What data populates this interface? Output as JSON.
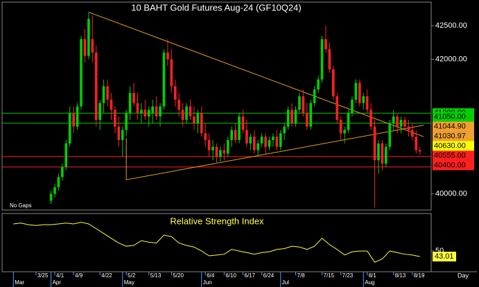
{
  "chart_data": {
    "type": "candlestick",
    "title": "10 BAHT Gold Futures Aug-24 (GF10Q24)",
    "note": "No Gaps",
    "x_unit": "Day",
    "up_color": "#00d000",
    "down_color": "#ff2020",
    "xlim": [
      -9,
      105
    ],
    "ylim": [
      39760,
      42850
    ],
    "yticks": [
      {
        "value": 42500,
        "label": "42500.00"
      },
      {
        "value": 42000,
        "label": "42000.00"
      },
      {
        "value": 40000,
        "label": "40000.00"
      }
    ],
    "xticks": [
      {
        "value": 0,
        "label": "3/25"
      },
      {
        "value": 5,
        "label": "4/1"
      },
      {
        "value": 10,
        "label": "4/9"
      },
      {
        "value": 17,
        "label": "4/22"
      },
      {
        "value": 24,
        "label": "5/2"
      },
      {
        "value": 30,
        "label": "5/13"
      },
      {
        "value": 36,
        "label": "5/20"
      },
      {
        "value": 45,
        "label": "6/4"
      },
      {
        "value": 50,
        "label": "6/10"
      },
      {
        "value": 55,
        "label": "6/17"
      },
      {
        "value": 60,
        "label": "6/24"
      },
      {
        "value": 69,
        "label": "7/8"
      },
      {
        "value": 76,
        "label": "7/15"
      },
      {
        "value": 81,
        "label": "7/23"
      },
      {
        "value": 88,
        "label": "8/1"
      },
      {
        "value": 95,
        "label": "8/13"
      },
      {
        "value": 100,
        "label": "8/19"
      }
    ],
    "month_ticks": [
      {
        "value": -6,
        "label": "Mar"
      },
      {
        "value": 4,
        "label": "Apr"
      },
      {
        "value": 23,
        "label": "May"
      },
      {
        "value": 44,
        "label": "Jun"
      },
      {
        "value": 65,
        "label": "Jul"
      },
      {
        "value": 87,
        "label": "Aug"
      }
    ],
    "x": [
      4,
      5,
      6,
      7,
      8,
      9,
      10,
      11,
      12,
      13,
      14,
      15,
      16,
      17,
      18,
      19,
      20,
      21,
      22,
      23,
      24,
      25,
      26,
      27,
      28,
      29,
      30,
      31,
      32,
      33,
      34,
      35,
      36,
      37,
      38,
      39,
      40,
      41,
      42,
      43,
      44,
      45,
      46,
      47,
      48,
      49,
      50,
      51,
      52,
      53,
      54,
      55,
      56,
      57,
      58,
      59,
      60,
      61,
      62,
      63,
      64,
      65,
      66,
      67,
      68,
      69,
      70,
      71,
      72,
      73,
      74,
      75,
      76,
      77,
      78,
      79,
      80,
      81,
      82,
      83,
      84,
      85,
      86,
      87,
      88,
      89,
      90,
      91,
      92,
      93,
      94,
      95,
      96,
      97,
      98,
      99,
      100,
      101,
      102
    ],
    "candles": [
      [
        39900,
        40050,
        39850,
        40000
      ],
      [
        40000,
        40150,
        39950,
        40100
      ],
      [
        40100,
        40300,
        40050,
        40250
      ],
      [
        40250,
        40450,
        40200,
        40400
      ],
      [
        40400,
        40800,
        40350,
        40750
      ],
      [
        40750,
        41300,
        40700,
        41200
      ],
      [
        41200,
        41300,
        40900,
        41000
      ],
      [
        41000,
        41350,
        40950,
        41300
      ],
      [
        41300,
        42350,
        41250,
        42300
      ],
      [
        42300,
        42450,
        41950,
        42050
      ],
      [
        42050,
        42700,
        42000,
        42600
      ],
      [
        42300,
        42650,
        41950,
        42100
      ],
      [
        42100,
        42200,
        41000,
        41100
      ],
      [
        41100,
        41400,
        40950,
        41350
      ],
      [
        41350,
        41700,
        41200,
        41600
      ],
      [
        41600,
        41700,
        41300,
        41400
      ],
      [
        41400,
        41500,
        41100,
        41250
      ],
      [
        41250,
        41300,
        40900,
        41000
      ],
      [
        41000,
        41150,
        40700,
        40800
      ],
      [
        40800,
        41000,
        40550,
        40950
      ],
      [
        40950,
        41250,
        40850,
        41200
      ],
      [
        41200,
        41600,
        41100,
        41500
      ],
      [
        41500,
        41650,
        41300,
        41350
      ],
      [
        41350,
        41500,
        41100,
        41200
      ],
      [
        41200,
        41350,
        41050,
        41250
      ],
      [
        41250,
        41400,
        41100,
        41150
      ],
      [
        41150,
        41300,
        41000,
        41250
      ],
      [
        41200,
        41400,
        41050,
        41300
      ],
      [
        41300,
        41450,
        41100,
        41150
      ],
      [
        41150,
        41350,
        41000,
        41300
      ],
      [
        41300,
        42150,
        41250,
        42100
      ],
      [
        42100,
        42300,
        41900,
        42000
      ],
      [
        42000,
        42150,
        41500,
        41600
      ],
      [
        41600,
        41700,
        41300,
        41400
      ],
      [
        41400,
        41500,
        41150,
        41250
      ],
      [
        41250,
        41350,
        41000,
        41100
      ],
      [
        41100,
        41350,
        41050,
        41300
      ],
      [
        41300,
        41400,
        41100,
        41150
      ],
      [
        41150,
        41300,
        40950,
        41050
      ],
      [
        41050,
        41250,
        40900,
        41200
      ],
      [
        41200,
        41300,
        40850,
        40900
      ],
      [
        40900,
        41050,
        40700,
        40800
      ],
      [
        40800,
        40900,
        40550,
        40650
      ],
      [
        40650,
        40800,
        40500,
        40700
      ],
      [
        40700,
        40750,
        40450,
        40550
      ],
      [
        40550,
        40700,
        40480,
        40650
      ],
      [
        40650,
        40750,
        40500,
        40600
      ],
      [
        40600,
        40850,
        40550,
        40800
      ],
      [
        40800,
        41000,
        40700,
        40950
      ],
      [
        40950,
        41050,
        40750,
        40800
      ],
      [
        40800,
        41200,
        40750,
        41150
      ],
      [
        41150,
        41250,
        40900,
        40950
      ],
      [
        40950,
        41100,
        40700,
        40750
      ],
      [
        40750,
        40900,
        40650,
        40850
      ],
      [
        40850,
        40950,
        40600,
        40650
      ],
      [
        40650,
        40800,
        40550,
        40750
      ],
      [
        40750,
        40900,
        40700,
        40850
      ],
      [
        40850,
        40900,
        40600,
        40700
      ],
      [
        40700,
        40850,
        40650,
        40800
      ],
      [
        40800,
        40900,
        40700,
        40850
      ],
      [
        40850,
        40950,
        40650,
        40700
      ],
      [
        40700,
        40950,
        40650,
        40900
      ],
      [
        40900,
        41050,
        40800,
        41000
      ],
      [
        41000,
        41300,
        40950,
        41250
      ],
      [
        41250,
        41350,
        41000,
        41050
      ],
      [
        41050,
        41300,
        41000,
        41250
      ],
      [
        41250,
        41500,
        41200,
        41450
      ],
      [
        41450,
        41550,
        41150,
        41200
      ],
      [
        41200,
        41350,
        40950,
        41000
      ],
      [
        41000,
        41400,
        40950,
        41350
      ],
      [
        41350,
        41600,
        41300,
        41550
      ],
      [
        41550,
        41750,
        41500,
        41700
      ],
      [
        41700,
        42350,
        41650,
        42300
      ],
      [
        42300,
        42500,
        42100,
        42150
      ],
      [
        42150,
        42250,
        41800,
        41850
      ],
      [
        41850,
        41900,
        41400,
        41450
      ],
      [
        41450,
        41500,
        41050,
        41100
      ],
      [
        41100,
        41150,
        40800,
        40900
      ],
      [
        40900,
        41000,
        40750,
        40950
      ],
      [
        40950,
        41250,
        40900,
        41200
      ],
      [
        41200,
        41450,
        41150,
        41400
      ],
      [
        41400,
        41700,
        41350,
        41650
      ],
      [
        41650,
        41700,
        41300,
        41350
      ],
      [
        41350,
        41500,
        41250,
        41450
      ],
      [
        41450,
        41550,
        41200,
        41250
      ],
      [
        41250,
        41350,
        40950,
        41000
      ],
      [
        41000,
        41100,
        39800,
        40500
      ],
      [
        40500,
        40800,
        40300,
        40750
      ],
      [
        40750,
        40800,
        40350,
        40450
      ],
      [
        40450,
        40750,
        40400,
        40700
      ],
      [
        40700,
        41100,
        40650,
        41050
      ],
      [
        41050,
        41250,
        40950,
        41150
      ],
      [
        41150,
        41200,
        40900,
        41000
      ],
      [
        41000,
        41150,
        40900,
        41100
      ],
      [
        41100,
        41150,
        40950,
        41000
      ],
      [
        41000,
        41100,
        40850,
        40950
      ],
      [
        40950,
        41050,
        40800,
        40850
      ],
      [
        40850,
        40950,
        40600,
        40650
      ],
      [
        40650,
        40700,
        40580,
        40630
      ]
    ],
    "levels": [
      {
        "value": 41200,
        "label": "41200.00",
        "color": "#00d000",
        "line": true
      },
      {
        "value": 41050,
        "label": "41050.00",
        "color": "#00d000",
        "line": true
      },
      {
        "value": 41044.9,
        "label": "41044.90",
        "color": "#f0a030",
        "line": false
      },
      {
        "value": 41030.97,
        "label": "41030.97",
        "color": "#f0a030",
        "line": false
      },
      {
        "value": 40630,
        "label": "40630.00",
        "color": "#ffff00",
        "line": false
      },
      {
        "value": 40555,
        "label": "40555.00",
        "color": "#ff2020",
        "line": true
      },
      {
        "value": 40400,
        "label": "40400.00",
        "color": "#ff2020",
        "line": true
      }
    ],
    "trendlines": [
      {
        "x": [
          14,
          103
        ],
        "y": [
          42700,
          40850
        ],
        "color": "#e8a020"
      },
      {
        "x": [
          24,
          24,
          103
        ],
        "y": [
          40830,
          40210,
          41020
        ],
        "color": "#e8a020"
      }
    ],
    "rsi": {
      "title": "Relative Strength Index",
      "color": "#ffff40",
      "ylim": [
        24,
        97
      ],
      "yticks": [
        50
      ],
      "x": [
        -6,
        -4,
        -2,
        0,
        2,
        4,
        6,
        8,
        10,
        12,
        14,
        16,
        18,
        20,
        22,
        24,
        26,
        28,
        30,
        32,
        34,
        36,
        38,
        40,
        42,
        44,
        46,
        48,
        50,
        52,
        54,
        56,
        58,
        60,
        62,
        64,
        66,
        68,
        70,
        72,
        74,
        76,
        78,
        80,
        82,
        84,
        86,
        88,
        90,
        92,
        94,
        96,
        98,
        100,
        102
      ],
      "values": [
        84,
        85,
        83,
        82,
        83,
        83,
        84,
        85,
        84,
        86,
        84,
        78,
        72,
        66,
        60,
        56,
        57,
        63,
        61,
        60,
        70,
        68,
        60,
        57,
        55,
        50,
        44,
        45,
        46,
        52,
        50,
        48,
        46,
        48,
        49,
        52,
        53,
        56,
        55,
        52,
        56,
        66,
        58,
        52,
        45,
        49,
        50,
        50,
        36,
        40,
        50,
        48,
        46,
        45,
        43.01
      ]
    }
  }
}
